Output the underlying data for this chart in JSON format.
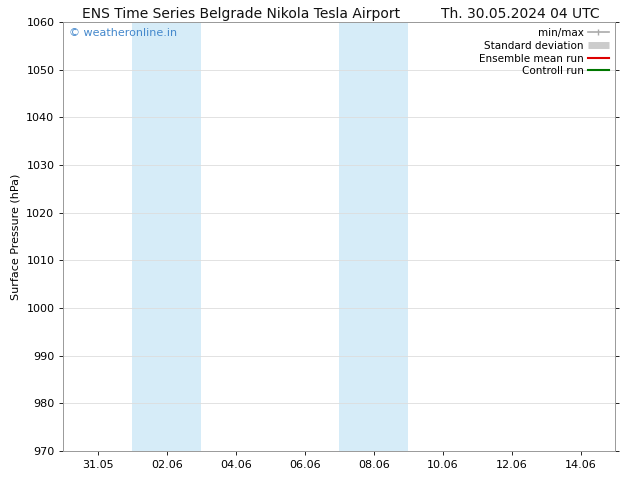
{
  "title_left": "ENS Time Series Belgrade Nikola Tesla Airport",
  "title_right": "Th. 30.05.2024 04 UTC",
  "ylabel": "Surface Pressure (hPa)",
  "ylim": [
    970,
    1060
  ],
  "yticks": [
    970,
    980,
    990,
    1000,
    1010,
    1020,
    1030,
    1040,
    1050,
    1060
  ],
  "xlim": [
    0.0,
    16.0
  ],
  "xtick_labels": [
    "31.05",
    "02.06",
    "04.06",
    "06.06",
    "08.06",
    "10.06",
    "12.06",
    "14.06"
  ],
  "xtick_positions": [
    1,
    3,
    5,
    7,
    9,
    11,
    13,
    15
  ],
  "shaded_bands": [
    {
      "x_start": 2,
      "x_end": 4,
      "color": "#d6ecf8"
    },
    {
      "x_start": 8,
      "x_end": 10,
      "color": "#d6ecf8"
    }
  ],
  "watermark_text": "© weatheronline.in",
  "watermark_color": "#4488cc",
  "legend_entries": [
    {
      "label": "min/max",
      "color": "#aaaaaa",
      "lw": 1.2
    },
    {
      "label": "Standard deviation",
      "color": "#cccccc",
      "lw": 5
    },
    {
      "label": "Ensemble mean run",
      "color": "#dd0000",
      "lw": 1.5
    },
    {
      "label": "Controll run",
      "color": "#007700",
      "lw": 1.5
    }
  ],
  "bg_color": "#ffffff",
  "spine_color": "#999999",
  "grid_color": "#dddddd",
  "title_fontsize": 10,
  "axis_label_fontsize": 8,
  "tick_fontsize": 8,
  "legend_fontsize": 7.5,
  "watermark_fontsize": 8
}
